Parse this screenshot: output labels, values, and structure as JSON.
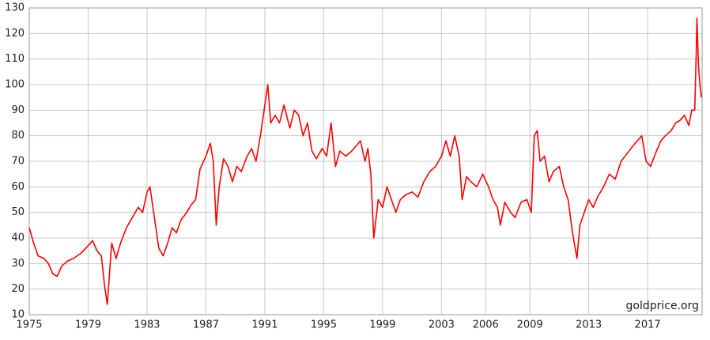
{
  "chart_data": {
    "type": "line",
    "watermark": "goldprice.org",
    "x": [
      1975.0,
      1975.3,
      1975.6,
      1976.0,
      1976.3,
      1976.6,
      1976.9,
      1977.2,
      1977.6,
      1978.0,
      1978.5,
      1979.0,
      1979.3,
      1979.6,
      1979.9,
      1980.1,
      1980.3,
      1980.6,
      1980.9,
      1981.2,
      1981.6,
      1982.0,
      1982.4,
      1982.7,
      1983.0,
      1983.2,
      1983.5,
      1983.8,
      1984.1,
      1984.4,
      1984.7,
      1985.0,
      1985.3,
      1985.7,
      1986.0,
      1986.3,
      1986.6,
      1987.0,
      1987.3,
      1987.5,
      1987.7,
      1987.9,
      1988.2,
      1988.5,
      1988.8,
      1989.1,
      1989.4,
      1989.8,
      1990.1,
      1990.4,
      1990.7,
      1991.0,
      1991.2,
      1991.4,
      1991.7,
      1992.0,
      1992.3,
      1992.7,
      1993.0,
      1993.3,
      1993.6,
      1993.9,
      1994.2,
      1994.5,
      1994.9,
      1995.2,
      1995.5,
      1995.8,
      1996.1,
      1996.5,
      1996.9,
      1997.2,
      1997.5,
      1997.8,
      1998.0,
      1998.2,
      1998.4,
      1998.7,
      1999.0,
      1999.3,
      1999.6,
      1999.9,
      2000.2,
      2000.6,
      2001.0,
      2001.4,
      2001.8,
      2002.2,
      2002.6,
      2003.0,
      2003.3,
      2003.6,
      2003.9,
      2004.2,
      2004.4,
      2004.7,
      2005.0,
      2005.4,
      2005.8,
      2006.2,
      2006.5,
      2006.8,
      2007.0,
      2007.3,
      2007.7,
      2008.0,
      2008.4,
      2008.8,
      2009.1,
      2009.3,
      2009.5,
      2009.7,
      2010.0,
      2010.3,
      2010.6,
      2011.0,
      2011.3,
      2011.6,
      2011.9,
      2012.2,
      2012.4,
      2012.7,
      2013.0,
      2013.3,
      2013.6,
      2014.0,
      2014.4,
      2014.8,
      2015.2,
      2015.6,
      2016.0,
      2016.3,
      2016.6,
      2016.9,
      2017.2,
      2017.6,
      2017.9,
      2018.2,
      2018.6,
      2018.9,
      2019.2,
      2019.5,
      2019.8,
      2020.0,
      2020.2,
      2020.3,
      2020.35,
      2020.45,
      2020.55,
      2020.65
    ],
    "series": [
      {
        "color": "#ff0000",
        "values": [
          44,
          38,
          33,
          32,
          30,
          26,
          25,
          29,
          31,
          32,
          34,
          37,
          39,
          35,
          33,
          22,
          14,
          38,
          32,
          38,
          44,
          48,
          52,
          50,
          58,
          60,
          48,
          36,
          33,
          38,
          44,
          42,
          47,
          50,
          53,
          55,
          67,
          72,
          77,
          70,
          45,
          60,
          71,
          68,
          62,
          68,
          66,
          72,
          75,
          70,
          80,
          92,
          100,
          85,
          88,
          85,
          92,
          83,
          90,
          88,
          80,
          85,
          74,
          71,
          75,
          72,
          85,
          68,
          74,
          72,
          74,
          76,
          78,
          70,
          75,
          65,
          40,
          55,
          52,
          60,
          55,
          50,
          55,
          57,
          58,
          56,
          62,
          66,
          68,
          72,
          78,
          72,
          80,
          72,
          55,
          64,
          62,
          60,
          65,
          60,
          55,
          52,
          45,
          54,
          50,
          48,
          54,
          55,
          50,
          80,
          82,
          70,
          72,
          62,
          66,
          68,
          60,
          55,
          42,
          32,
          45,
          50,
          55,
          52,
          56,
          60,
          65,
          63,
          70,
          73,
          76,
          78,
          80,
          70,
          68,
          74,
          78,
          80,
          82,
          85,
          86,
          88,
          84,
          90,
          90,
          112,
          126,
          108,
          100,
          95
        ]
      }
    ],
    "xlim": [
      1975,
      2020.7
    ],
    "xticks": [
      1975,
      1979,
      1983,
      1987,
      1991,
      1995,
      1999,
      2003,
      2006,
      2009,
      2013,
      2017
    ],
    "ylim": [
      10,
      130
    ],
    "yticks": [
      10,
      20,
      30,
      40,
      50,
      60,
      70,
      80,
      90,
      100,
      110,
      120,
      130
    ],
    "grid": true
  }
}
